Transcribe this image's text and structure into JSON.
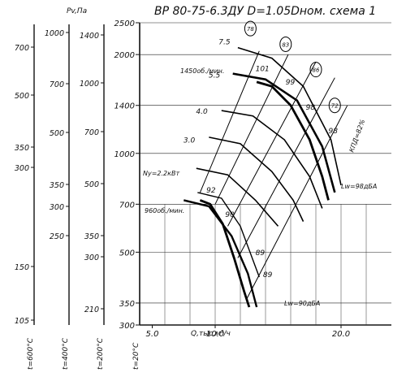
{
  "chart_data": {
    "type": "line",
    "title": "ВР 80-75-6.3ДУ D=1.05Dном. схема 1",
    "xlabel": "Q,тыс.м³/ч",
    "x_ticks": [
      "5.0",
      "10.0",
      "20.0"
    ],
    "x_range": [
      4,
      24
    ],
    "y_range": [
      300,
      2500
    ],
    "y_scale": "log",
    "main_ylabel": "P,Па",
    "main_ticks": [
      "2500",
      "2000",
      "1400",
      "1000",
      "700",
      "500",
      "350",
      "300"
    ],
    "pv_label": "Pv,Па",
    "temperature_axes": [
      {
        "label": "t=600°C",
        "ticks": [
          "700",
          "500",
          "350",
          "300",
          "150",
          "105"
        ]
      },
      {
        "label": "t=400°C",
        "ticks": [
          "1000",
          "700",
          "500",
          "350",
          "300",
          "250"
        ]
      },
      {
        "label": "t=200°C",
        "ticks": [
          "1400",
          "1000",
          "700",
          "500",
          "350",
          "300",
          "210"
        ]
      },
      {
        "label": "t=20°C",
        "ticks": [
          "2500",
          "2000",
          "1400",
          "1000",
          "700",
          "500",
          "350",
          "300"
        ]
      }
    ],
    "pv_ticks": [
      "1000",
      "700",
      "500",
      "350",
      "300",
      "250",
      "150"
    ],
    "speed_labels": {
      "high": "1450об./мин.",
      "low": "960об./мин."
    },
    "ny_label": "Ny=2.2кВт",
    "power_labels": [
      "7.5",
      "5.5",
      "4.0",
      "3.0"
    ],
    "efficiency_circles": [
      "78",
      "83",
      "86",
      "72"
    ],
    "efficiency_label": "КПД=82%",
    "efficiency_values": [
      "101",
      "99",
      "98",
      "98",
      "92",
      "90",
      "89",
      "89"
    ],
    "noise_labels": [
      "Lw=98дБА",
      "Lw=90дБА"
    ],
    "series": [
      {
        "name": "1450об./мин.",
        "x": [
          13.3,
          14.5,
          16.0,
          17.5,
          18.5,
          19.0
        ],
        "y": [
          1650,
          1600,
          1400,
          1100,
          850,
          720
        ]
      },
      {
        "name": "960об./мин.",
        "x": [
          8.8,
          9.6,
          10.6,
          11.5,
          12.3,
          12.7
        ],
        "y": [
          720,
          700,
          610,
          480,
          380,
          340
        ]
      }
    ]
  }
}
